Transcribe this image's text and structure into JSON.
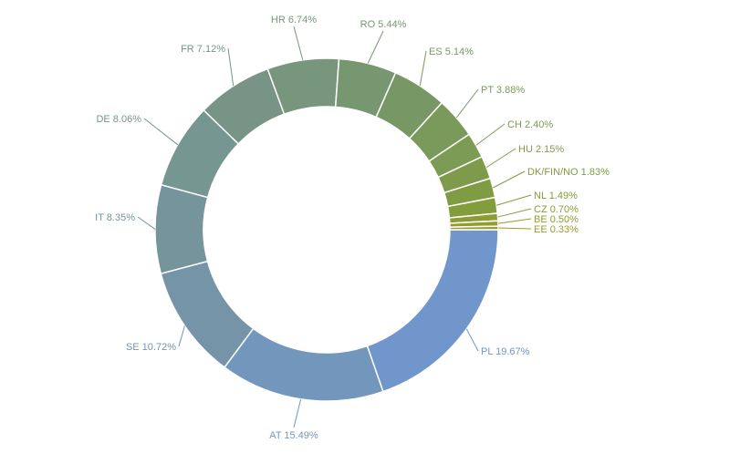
{
  "chart_data": {
    "type": "pie",
    "variant": "donut",
    "start": "3 o'clock, clockwise",
    "slices": [
      {
        "label": "PL 19.67%",
        "name": "PL",
        "value": 19.67,
        "color": "#7096cc"
      },
      {
        "label": "AT 15.49%",
        "name": "AT",
        "value": 15.49,
        "color": "#7396bc"
      },
      {
        "label": "SE 10.72%",
        "name": "SE",
        "value": 10.72,
        "color": "#7594a8"
      },
      {
        "label": "IT 8.35%",
        "name": "IT",
        "value": 8.35,
        "color": "#75949c"
      },
      {
        "label": "DE 8.06%",
        "name": "DE",
        "value": 8.06,
        "color": "#769692"
      },
      {
        "label": "FR 7.12%",
        "name": "FR",
        "value": 7.12,
        "color": "#779486"
      },
      {
        "label": "HR 6.74%",
        "name": "HR",
        "value": 6.74,
        "color": "#78967c"
      },
      {
        "label": "RO 5.44%",
        "name": "RO",
        "value": 5.44,
        "color": "#779770"
      },
      {
        "label": "ES 5.14%",
        "name": "ES",
        "value": 5.14,
        "color": "#779864"
      },
      {
        "label": "PT 3.88%",
        "name": "PT",
        "value": 3.88,
        "color": "#7a9a5c"
      },
      {
        "label": "CH 2.40%",
        "name": "CH",
        "value": 2.4,
        "color": "#7c9b54"
      },
      {
        "label": "HU 2.15%",
        "name": "HU",
        "value": 2.15,
        "color": "#7e9b4c"
      },
      {
        "label": "DK/FIN/NO 1.83%",
        "name": "DK/FIN/NO",
        "value": 1.83,
        "color": "#7f9c44"
      },
      {
        "label": "NL 1.49%",
        "name": "NL",
        "value": 1.49,
        "color": "#839c3c"
      },
      {
        "label": "CZ 0.70%",
        "name": "CZ",
        "value": 0.7,
        "color": "#8a9c36"
      },
      {
        "label": "BE 0.50%",
        "name": "BE",
        "value": 0.5,
        "color": "#949c30"
      },
      {
        "label": "EE 0.33%",
        "name": "EE",
        "value": 0.33,
        "color": "#9c9c2c"
      }
    ]
  }
}
